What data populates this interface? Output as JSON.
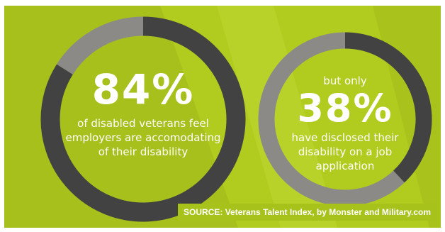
{
  "colors": {
    "background": "#b1cb1f",
    "ring_highlight": "#424242",
    "ring_remainder": "#8c8a86",
    "text": "#ffffff"
  },
  "chart_data": [
    {
      "type": "pie",
      "style": "donut",
      "value_percent": 84,
      "remainder_percent": 16,
      "value_label": "84%",
      "description": "of disabled veterans feel employers are accomodating of their disability"
    },
    {
      "type": "pie",
      "style": "donut",
      "value_percent": 38,
      "remainder_percent": 62,
      "value_label": "38%",
      "prefix": "but only",
      "description": "have disclosed their disability on a job application"
    }
  ],
  "source": "SOURCE: Veterans Talent Index, by Monster and Military.com"
}
